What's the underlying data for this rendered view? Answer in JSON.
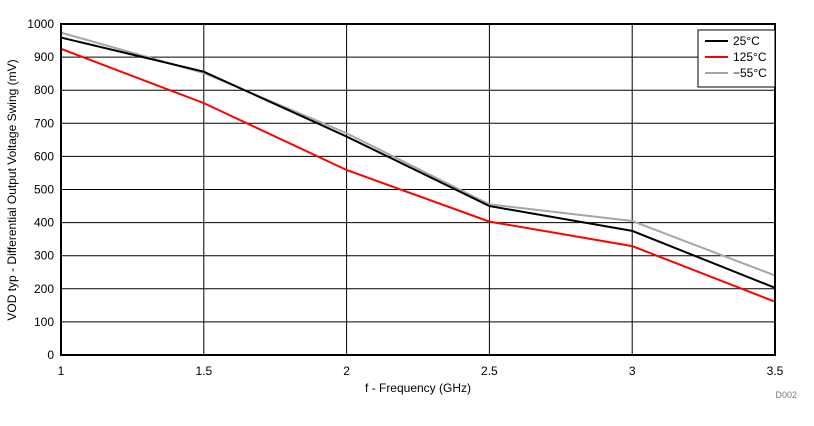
{
  "chart_data": {
    "type": "line",
    "xlabel": "f - Frequency (GHz)",
    "ylabel": "VOD typ - Differential Output Voltage Swing (mV)",
    "xlim": [
      1,
      3.5
    ],
    "ylim": [
      0,
      1000
    ],
    "xticks": [
      "1",
      "1.5",
      "2",
      "2.5",
      "3",
      "3.5"
    ],
    "yticks": [
      "0",
      "100",
      "200",
      "300",
      "400",
      "500",
      "600",
      "700",
      "800",
      "900",
      "1000"
    ],
    "grid": true,
    "legend_position": "top-right",
    "x": [
      1,
      1.5,
      2,
      2.5,
      3,
      3.5
    ],
    "series": [
      {
        "name": "25°C",
        "color": "#000000",
        "values": [
          959,
          856,
          660,
          450,
          375,
          203
        ]
      },
      {
        "name": "125°C",
        "color": "#ff0000",
        "values": [
          925,
          761,
          559,
          403,
          329,
          161
        ]
      },
      {
        "name": "−55°C",
        "color": "#a6a6a6",
        "values": [
          974,
          852,
          670,
          455,
          405,
          240
        ]
      }
    ],
    "annotation": "D002"
  }
}
